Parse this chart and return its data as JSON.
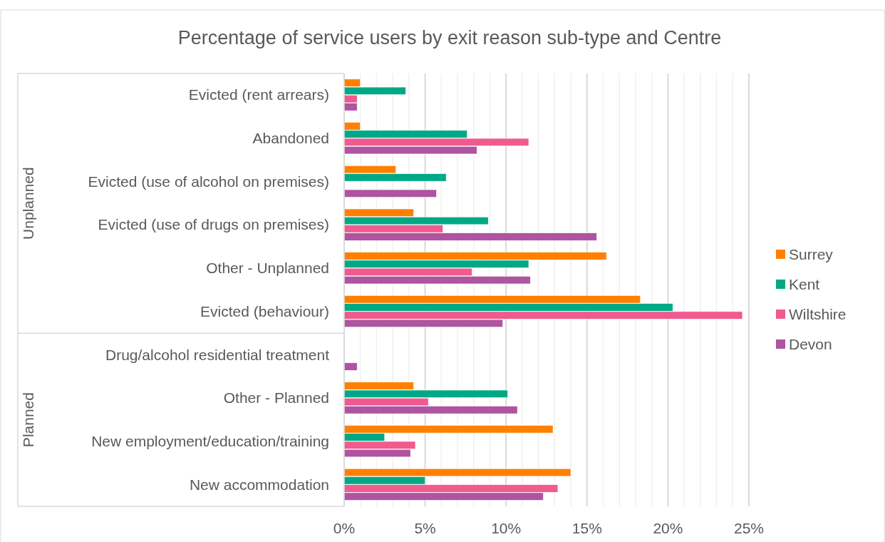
{
  "chart_data": {
    "type": "bar",
    "orientation": "horizontal",
    "title": "Percentage of service users by exit reason sub-type and Centre",
    "categories": [
      "Evicted (rent arrears)",
      "Abandoned",
      "Evicted (use of alcohol on premises)",
      "Evicted (use of drugs on premises)",
      "Other - Unplanned",
      "Evicted (behaviour)",
      "Drug/alcohol residential treatment",
      "Other - Planned",
      "New employment/education/training",
      "New accommodation"
    ],
    "series": [
      {
        "name": "Surrey",
        "color": "#ff8000",
        "values": [
          1.0,
          1.0,
          3.2,
          4.3,
          16.2,
          18.3,
          null,
          4.3,
          12.9,
          14.0
        ]
      },
      {
        "name": "Kent",
        "color": "#00a985",
        "values": [
          3.8,
          7.6,
          6.3,
          8.9,
          11.4,
          20.3,
          null,
          10.1,
          2.5,
          5.0
        ]
      },
      {
        "name": "Wiltshire",
        "color": "#f05a8f",
        "values": [
          0.8,
          11.4,
          null,
          6.1,
          7.9,
          24.6,
          null,
          5.2,
          4.4,
          13.2
        ]
      },
      {
        "name": "Devon",
        "color": "#ae54a0",
        "values": [
          0.8,
          8.2,
          5.7,
          15.6,
          11.5,
          9.8,
          0.8,
          10.7,
          4.1,
          12.3
        ]
      }
    ],
    "xlim": [
      0,
      25
    ],
    "xticks": [
      {
        "value": 0,
        "label": "0%"
      },
      {
        "value": 1,
        "label": null
      },
      {
        "value": 2,
        "label": null
      },
      {
        "value": 3,
        "label": null
      },
      {
        "value": 4,
        "label": null
      },
      {
        "value": 5,
        "label": "5%"
      },
      {
        "value": 6,
        "label": null
      },
      {
        "value": 7,
        "label": null
      },
      {
        "value": 8,
        "label": null
      },
      {
        "value": 9,
        "label": null
      },
      {
        "value": 10,
        "label": "10%"
      },
      {
        "value": 11,
        "label": null
      },
      {
        "value": 12,
        "label": null
      },
      {
        "value": 13,
        "label": null
      },
      {
        "value": 14,
        "label": null
      },
      {
        "value": 15,
        "label": "15%"
      },
      {
        "value": 16,
        "label": null
      },
      {
        "value": 17,
        "label": null
      },
      {
        "value": 18,
        "label": null
      },
      {
        "value": 19,
        "label": null
      },
      {
        "value": 20,
        "label": "20%"
      },
      {
        "value": 21,
        "label": null
      },
      {
        "value": 22,
        "label": null
      },
      {
        "value": 23,
        "label": null
      },
      {
        "value": 24,
        "label": null
      },
      {
        "value": 25,
        "label": "25%"
      }
    ],
    "annotations": [
      "Unplanned",
      "Planned"
    ],
    "grid": "x",
    "legend": "right"
  }
}
